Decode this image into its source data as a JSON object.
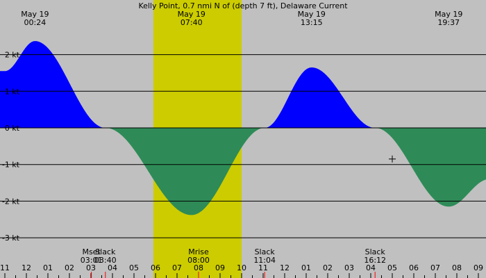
{
  "chart_data": {
    "type": "area",
    "title": "Kelly Point, 0.7 nmi N of (depth 7 ft), Delaware Current",
    "xlabel": "",
    "ylabel": "",
    "x_range_hours": [
      23.0,
      33.6
    ],
    "daylight_hours": [
      29.9,
      34.0
    ],
    "ylim": [
      -3,
      2.5
    ],
    "y_ticks": [
      {
        "value": 2,
        "label": "2 kt"
      },
      {
        "value": 1,
        "label": "1 kt"
      },
      {
        "value": 0,
        "label": "0 kt"
      },
      {
        "value": -1,
        "label": "-1 kt"
      },
      {
        "value": -2,
        "label": "-2 kt"
      },
      {
        "value": -3,
        "label": "-3 kt"
      }
    ],
    "series": [
      {
        "name": "Flood",
        "color": "#0000ff"
      },
      {
        "name": "Ebb",
        "color": "#2e8b57"
      }
    ],
    "curve_points": [
      {
        "hour": 23.0,
        "value": 1.55
      },
      {
        "hour": 24.4,
        "value": 2.37
      },
      {
        "hour": 27.67,
        "value": 0
      },
      {
        "hour": 31.67,
        "value": -2.38
      },
      {
        "hour": 35.07,
        "value": 0
      },
      {
        "hour": 37.25,
        "value": 1.65
      },
      {
        "hour": 40.2,
        "value": 0
      },
      {
        "hour": 43.62,
        "value": -2.15
      },
      {
        "hour": 45.5,
        "value": -1.4
      }
    ],
    "top_events": [
      {
        "hour": 24.4,
        "date": "May 19",
        "time": "00:24"
      },
      {
        "hour": 31.67,
        "date": "May 19",
        "time": "07:40"
      },
      {
        "hour": 37.25,
        "date": "May 19",
        "time": "13:15"
      },
      {
        "hour": 43.62,
        "date": "May 19",
        "time": "19:37"
      }
    ],
    "bottom_events": [
      {
        "hour": 27.02,
        "name": "Mset",
        "time": "03:01"
      },
      {
        "hour": 27.67,
        "name": "Slack",
        "time": "03:40"
      },
      {
        "hour": 32.0,
        "name": "Mrise",
        "time": "08:00"
      },
      {
        "hour": 35.07,
        "name": "Slack",
        "time": "11:04"
      },
      {
        "hour": 40.2,
        "name": "Slack",
        "time": "16:12"
      }
    ],
    "x_tick_labels": [
      "11",
      "12",
      "01",
      "02",
      "03",
      "04",
      "05",
      "06",
      "07",
      "08",
      "09",
      "10",
      "11",
      "12",
      "01",
      "02",
      "03",
      "04",
      "05",
      "06",
      "07",
      "08",
      "09"
    ],
    "x_tick_start_hour": 23,
    "marker": {
      "hour": 41.0,
      "value": -0.85
    },
    "colors": {
      "night": "#c0c0c0",
      "day": "#cccc00",
      "flood": "#0000ff",
      "ebb": "#2e8b57",
      "red_tick": "#ff0000"
    }
  }
}
